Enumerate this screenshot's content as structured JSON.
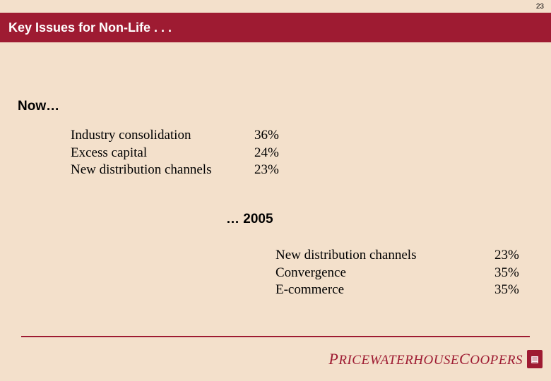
{
  "page_number": "23",
  "header": {
    "title": "Key Issues for Non-Life . . .",
    "bg_color": "#9e1b32",
    "text_color": "#ffffff",
    "font_size": 18,
    "font_family": "Arial"
  },
  "background_color": "#f3e0cb",
  "sections": {
    "now": {
      "label": "Now…",
      "items": [
        {
          "label": "Industry consolidation",
          "value": "36%"
        },
        {
          "label": "Excess capital",
          "value": "24%"
        },
        {
          "label": "New distribution channels",
          "value": "23%"
        }
      ]
    },
    "mid_label": "… 2005",
    "future": {
      "items": [
        {
          "label": "New distribution channels",
          "value": "23%"
        },
        {
          "label": "Convergence",
          "value": "35%"
        },
        {
          "label": "E-commerce",
          "value": "35%"
        }
      ]
    }
  },
  "body_text": {
    "font_family": "Times New Roman",
    "font_size": 19,
    "color": "#000000"
  },
  "divider_color": "#9e1b32",
  "logo": {
    "text_parts": [
      "P",
      "RICEWATERHOUSE",
      "C",
      "OOPERS"
    ],
    "color": "#9e1b32",
    "badge_bg": "#9e1b32",
    "badge_fg": "#ffffff",
    "badge_text": "▤"
  }
}
